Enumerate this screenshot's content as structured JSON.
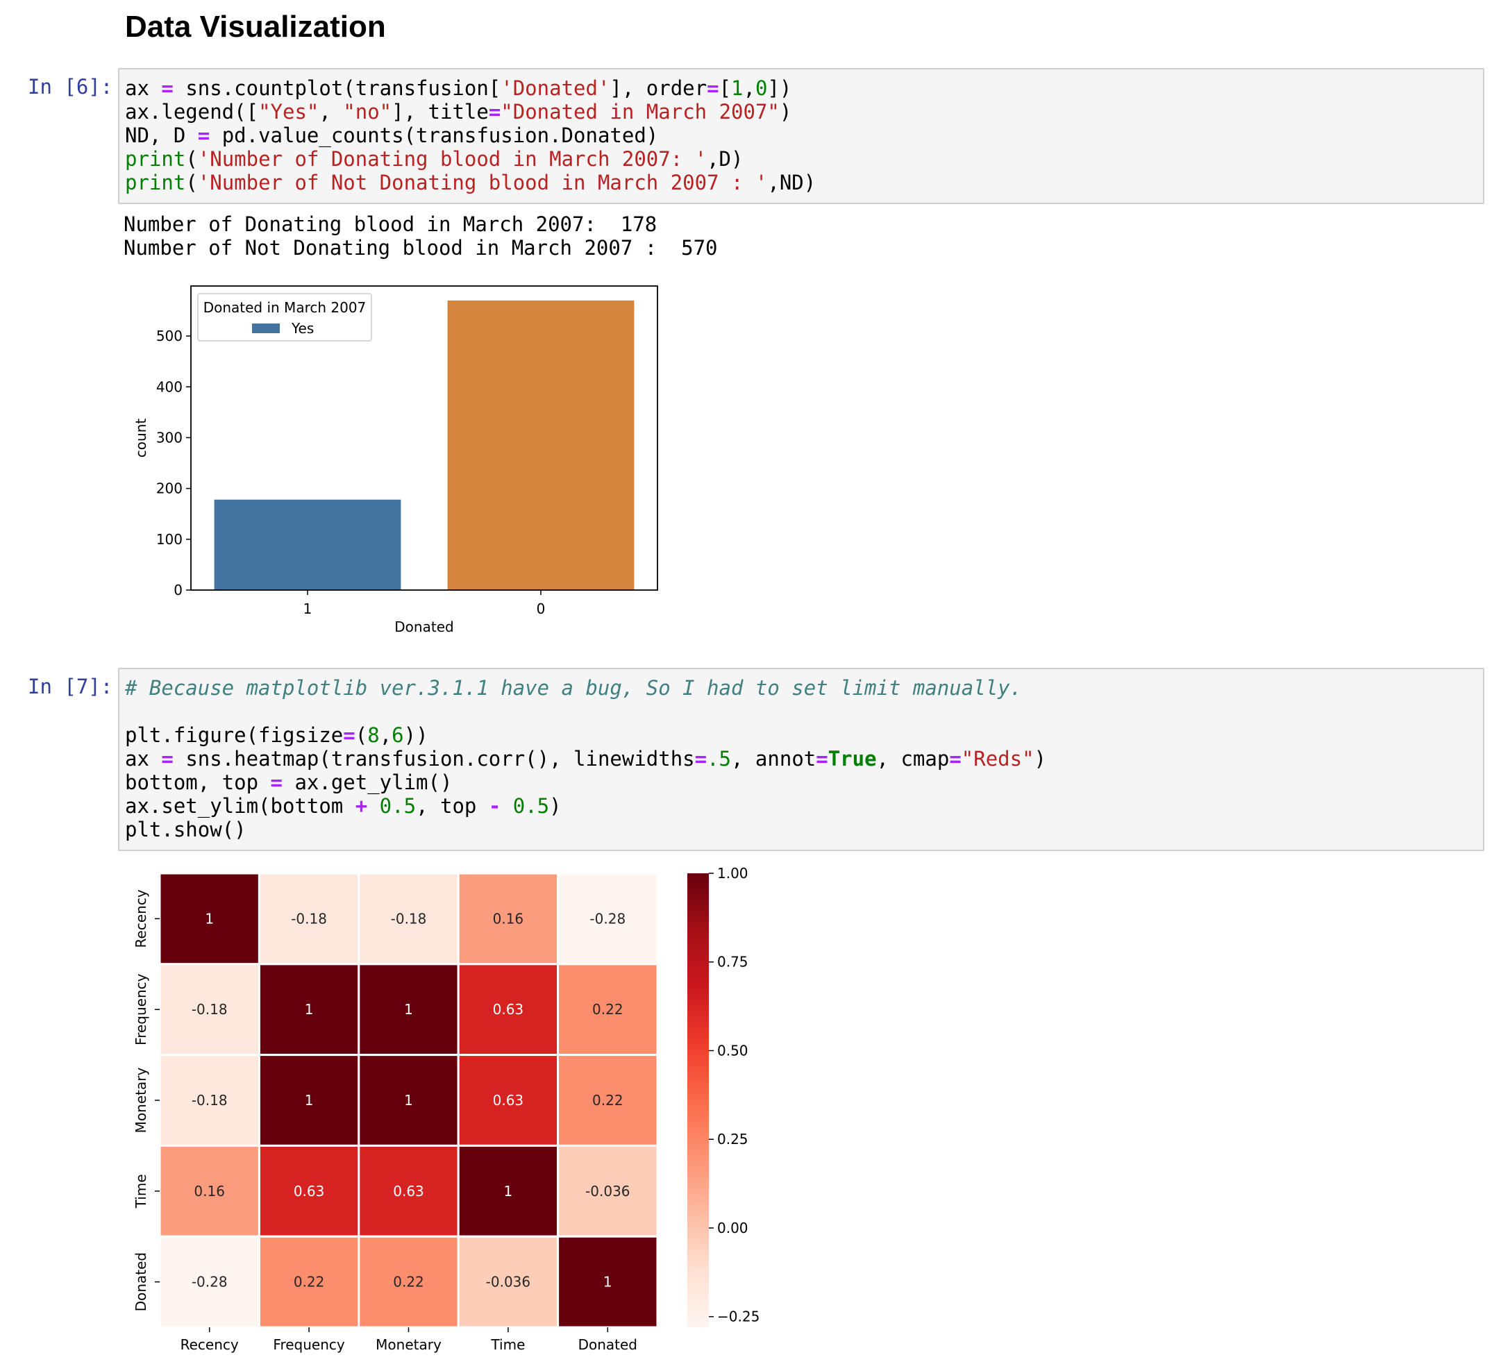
{
  "heading": "Data Visualization",
  "cells": [
    {
      "prompt": "In [6]:",
      "code": {
        "l1": {
          "a": "ax ",
          "b": "=",
          "c": " sns.countplot(transfusion[",
          "d": "'Donated'",
          "e": "], order",
          "f": "=",
          "g": "[",
          "h": "1",
          "i": ",",
          "j": "0",
          "k": "])"
        },
        "l2": {
          "a": "ax.legend([",
          "b": "\"Yes\"",
          "c": ", ",
          "d": "\"no\"",
          "e": "], title",
          "f": "=",
          "g": "\"Donated in March 2007\"",
          "h": ")"
        },
        "l3": {
          "a": "ND, D ",
          "b": "=",
          "c": " pd.value_counts(transfusion.Donated)"
        },
        "l4": {
          "a": "print",
          "b": "(",
          "c": "'Number of Donating blood in March 2007: '",
          "d": ",D)"
        },
        "l5": {
          "a": "print",
          "b": "(",
          "c": "'Number of Not Donating blood in March 2007 : '",
          "d": ",ND)"
        }
      },
      "output": [
        "Number of Donating blood in March 2007:  178",
        "Number of Not Donating blood in March 2007 :  570"
      ]
    },
    {
      "prompt": "In [7]:",
      "code": {
        "l1": {
          "a": "# Because matplotlib ver.3.1.1 have a bug, So I had to set limit manually."
        },
        "l2": {
          "a": "plt.figure(figsize",
          "b": "=",
          "c": "(",
          "d": "8",
          "e": ",",
          "f": "6",
          "g": "))"
        },
        "l3": {
          "a": "ax ",
          "b": "=",
          "c": " sns.heatmap(transfusion.corr(), linewidths",
          "d": "=",
          "e": ".5",
          "f": ", annot",
          "g": "=",
          "h": "True",
          "i": ", cmap",
          "j": "=",
          "k": "\"Reds\"",
          "l": ")"
        },
        "l4": {
          "a": "bottom, top ",
          "b": "=",
          "c": " ax.get_ylim()"
        },
        "l5": {
          "a": "ax.set_ylim(bottom ",
          "b": "+",
          "c": " ",
          "d": "0.5",
          "e": ", top ",
          "f": "-",
          "g": " ",
          "h": "0.5",
          "i": ")"
        },
        "l6": {
          "a": "plt.show()"
        }
      }
    }
  ],
  "chart_data": [
    {
      "type": "bar",
      "categories": [
        "1",
        "0"
      ],
      "values": [
        178,
        570
      ],
      "colors": [
        "#4374a0",
        "#d5843d"
      ],
      "xlabel": "Donated",
      "ylabel": "count",
      "yticks": [
        0,
        100,
        200,
        300,
        400,
        500
      ],
      "ylim": [
        0,
        598.5
      ],
      "legend": {
        "title": "Donated in March 2007",
        "entries": [
          "Yes"
        ],
        "placement": "upper-left"
      },
      "grid": false
    },
    {
      "type": "heatmap",
      "rows": [
        "Recency",
        "Frequency",
        "Monetary",
        "Time",
        "Donated"
      ],
      "cols": [
        "Recency",
        "Frequency",
        "Monetary",
        "Time",
        "Donated"
      ],
      "values": [
        [
          1,
          -0.18,
          -0.18,
          0.16,
          -0.28
        ],
        [
          -0.18,
          1,
          1,
          0.63,
          0.22
        ],
        [
          -0.18,
          1,
          1,
          0.63,
          0.22
        ],
        [
          0.16,
          0.63,
          0.63,
          1,
          -0.036
        ],
        [
          -0.28,
          0.22,
          0.22,
          -0.036,
          1
        ]
      ],
      "labels": [
        [
          "1",
          "-0.18",
          "-0.18",
          "0.16",
          "-0.28"
        ],
        [
          "-0.18",
          "1",
          "1",
          "0.63",
          "0.22"
        ],
        [
          "-0.18",
          "1",
          "1",
          "0.63",
          "0.22"
        ],
        [
          "0.16",
          "0.63",
          "0.63",
          "1",
          "-0.036"
        ],
        [
          "-0.28",
          "0.22",
          "0.22",
          "-0.036",
          "1"
        ]
      ],
      "colormap": "Reds",
      "colorbar": {
        "min": -0.28,
        "max": 1.0,
        "ticks": [
          "1.00",
          "0.75",
          "0.50",
          "0.25",
          "0.00",
          "−0.25"
        ],
        "tick_values": [
          1.0,
          0.75,
          0.5,
          0.25,
          0.0,
          -0.25
        ]
      }
    }
  ]
}
